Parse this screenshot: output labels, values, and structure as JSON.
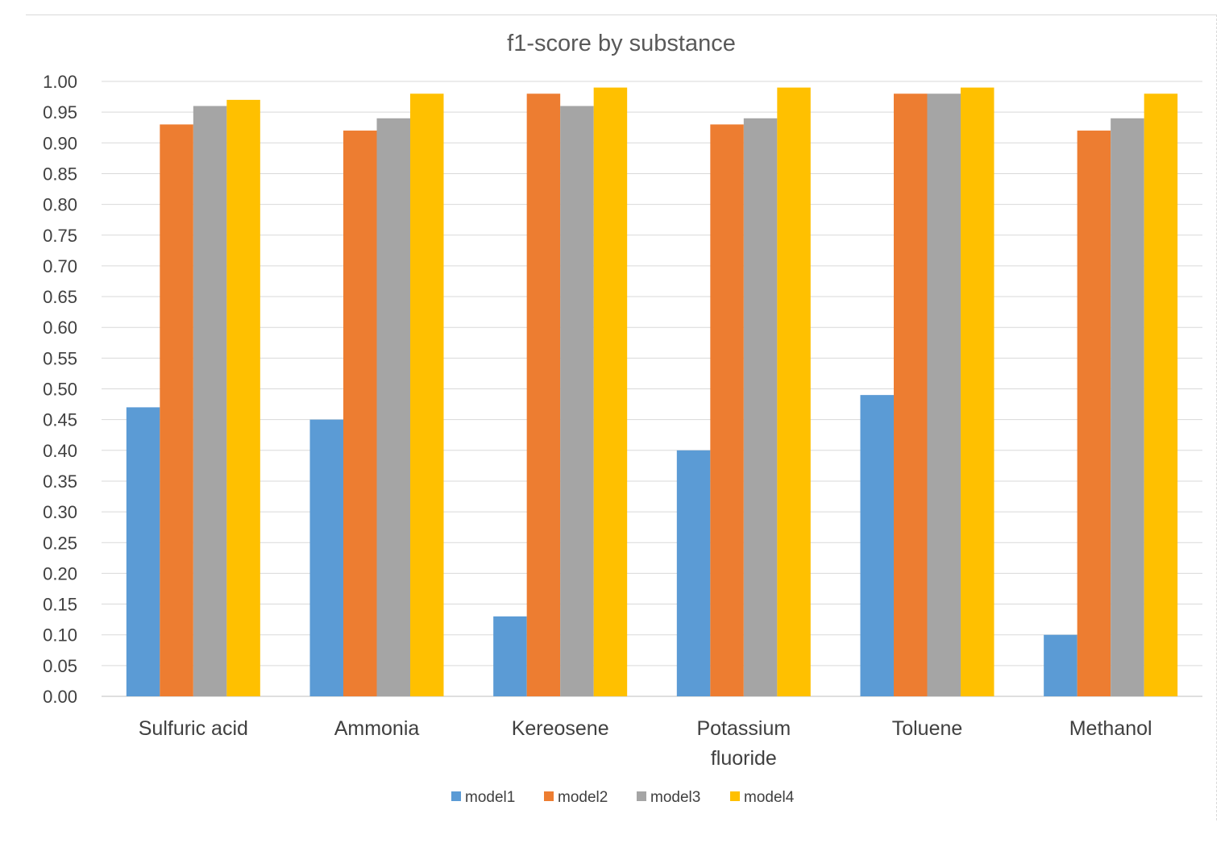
{
  "chart_data": {
    "type": "bar",
    "title": "f1-score  by substance",
    "xlabel": "",
    "ylabel": "",
    "ylim": [
      0,
      1.0
    ],
    "yticks": [
      "0.00",
      "0.05",
      "0.10",
      "0.15",
      "0.20",
      "0.25",
      "0.30",
      "0.35",
      "0.40",
      "0.45",
      "0.50",
      "0.55",
      "0.60",
      "0.65",
      "0.70",
      "0.75",
      "0.80",
      "0.85",
      "0.90",
      "0.95",
      "1.00"
    ],
    "grid": true,
    "legend_position": "bottom",
    "categories": [
      "Sulfuric acid",
      "Ammonia",
      "Kereosene",
      "Potassium fluoride",
      "Toluene",
      "Methanol"
    ],
    "category_lines": [
      [
        "Sulfuric acid"
      ],
      [
        "Ammonia"
      ],
      [
        "Kereosene"
      ],
      [
        "Potassium",
        "fluoride"
      ],
      [
        "Toluene"
      ],
      [
        "Methanol"
      ]
    ],
    "series": [
      {
        "name": "model1",
        "color": "#5B9BD5",
        "values": [
          0.47,
          0.45,
          0.13,
          0.4,
          0.49,
          0.1
        ]
      },
      {
        "name": "model2",
        "color": "#ED7D31",
        "values": [
          0.93,
          0.92,
          0.98,
          0.93,
          0.98,
          0.92
        ]
      },
      {
        "name": "model3",
        "color": "#A5A5A5",
        "values": [
          0.96,
          0.94,
          0.96,
          0.94,
          0.98,
          0.94
        ]
      },
      {
        "name": "model4",
        "color": "#FFC000",
        "values": [
          0.97,
          0.98,
          0.99,
          0.99,
          0.99,
          0.98
        ]
      }
    ]
  }
}
